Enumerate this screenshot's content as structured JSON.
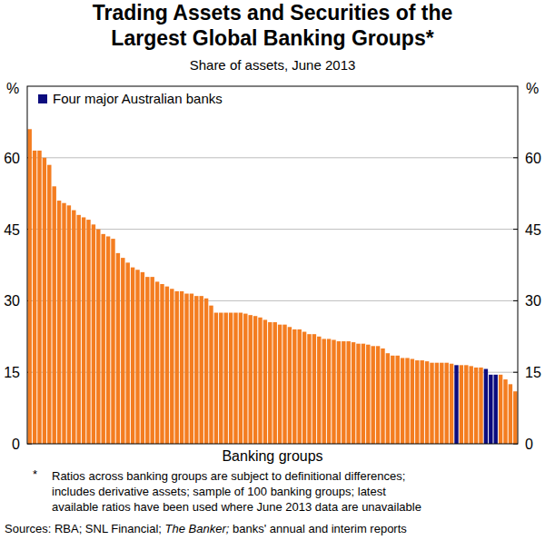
{
  "chart_data": {
    "type": "bar",
    "title": [
      "Trading Assets and Securities of the",
      "Largest Global Banking Groups*"
    ],
    "subtitle": "Share of assets, June 2013",
    "x_label": "Banking groups",
    "y_unit": "%",
    "legend": "top-left",
    "legend_items": [
      {
        "name": "Four major Australian banks",
        "color": "#0c0c7e"
      }
    ],
    "categories": [
      null,
      null,
      null,
      null,
      null,
      null,
      null,
      null,
      null,
      null,
      null,
      null,
      null,
      null,
      null,
      null,
      null,
      null,
      null,
      null,
      null,
      null,
      null,
      null,
      null,
      null,
      null,
      null,
      null,
      null,
      null,
      null,
      null,
      null,
      null,
      null,
      null,
      null,
      null,
      null,
      null,
      null,
      null,
      null,
      null,
      null,
      null,
      null,
      null,
      null,
      null,
      null,
      null,
      null,
      null,
      null,
      null,
      null,
      null,
      null,
      null,
      null,
      null,
      null,
      null,
      null,
      null,
      null,
      null,
      null,
      null,
      null,
      null,
      null,
      null,
      null,
      null,
      null,
      null,
      null,
      null,
      null,
      null,
      null,
      null,
      null,
      null,
      null,
      null,
      null,
      null,
      null,
      null,
      null,
      null,
      null,
      null,
      null,
      null,
      null
    ],
    "values": [
      66,
      61.5,
      61.5,
      60,
      58.5,
      54,
      51,
      50.5,
      50,
      49,
      48,
      47.5,
      47,
      46,
      45,
      44,
      43.5,
      43,
      40,
      39,
      38,
      37,
      36.5,
      36,
      35,
      35,
      34,
      33.5,
      33,
      32.5,
      32,
      32,
      31.5,
      31.5,
      31,
      31,
      30.5,
      29,
      27.5,
      27.5,
      27.5,
      27.5,
      27.5,
      27.5,
      27.3,
      27,
      26.8,
      26.5,
      26,
      25.5,
      25.5,
      25,
      25,
      24.5,
      24,
      24,
      23.5,
      23,
      23,
      22.5,
      22,
      22,
      21.8,
      21.5,
      21.5,
      21.5,
      21.3,
      21,
      21,
      20.8,
      20.5,
      20.5,
      20,
      19,
      18.5,
      18.5,
      18,
      18,
      17.8,
      17.5,
      17.5,
      17.3,
      17,
      17,
      17,
      17,
      16.8,
      16.5,
      16.5,
      16.5,
      16.3,
      16,
      16,
      15.7,
      14.5,
      14.5,
      14.5,
      13.5,
      12.5,
      11
    ],
    "colors": [
      "#f47d20",
      "#f47d20",
      "#f47d20",
      "#f47d20",
      "#f47d20",
      "#f47d20",
      "#f47d20",
      "#f47d20",
      "#f47d20",
      "#f47d20",
      "#f47d20",
      "#f47d20",
      "#f47d20",
      "#f47d20",
      "#f47d20",
      "#f47d20",
      "#f47d20",
      "#f47d20",
      "#f47d20",
      "#f47d20",
      "#f47d20",
      "#f47d20",
      "#f47d20",
      "#f47d20",
      "#f47d20",
      "#f47d20",
      "#f47d20",
      "#f47d20",
      "#f47d20",
      "#f47d20",
      "#f47d20",
      "#f47d20",
      "#f47d20",
      "#f47d20",
      "#f47d20",
      "#f47d20",
      "#f47d20",
      "#f47d20",
      "#f47d20",
      "#f47d20",
      "#f47d20",
      "#f47d20",
      "#f47d20",
      "#f47d20",
      "#f47d20",
      "#f47d20",
      "#f47d20",
      "#f47d20",
      "#f47d20",
      "#f47d20",
      "#f47d20",
      "#f47d20",
      "#f47d20",
      "#f47d20",
      "#f47d20",
      "#f47d20",
      "#f47d20",
      "#f47d20",
      "#f47d20",
      "#f47d20",
      "#f47d20",
      "#f47d20",
      "#f47d20",
      "#f47d20",
      "#f47d20",
      "#f47d20",
      "#f47d20",
      "#f47d20",
      "#f47d20",
      "#f47d20",
      "#f47d20",
      "#f47d20",
      "#f47d20",
      "#f47d20",
      "#f47d20",
      "#f47d20",
      "#f47d20",
      "#f47d20",
      "#f47d20",
      "#f47d20",
      "#f47d20",
      "#f47d20",
      "#f47d20",
      "#f47d20",
      "#f47d20",
      "#f47d20",
      "#f47d20",
      "#0c0c7e",
      "#f47d20",
      "#f47d20",
      "#f47d20",
      "#f47d20",
      "#f47d20",
      "#0c0c7e",
      "#0c0c7e",
      "#0c0c7e",
      "#f47d20",
      "#f47d20",
      "#f47d20",
      "#f47d20"
    ],
    "ylim": [
      0,
      75
    ],
    "yticks": [
      0,
      15,
      30,
      45,
      60
    ],
    "grid": true,
    "tick_labels": "y",
    "footnote_marker": "*",
    "footnote": [
      "Ratios across banking groups are subject to definitional differences;",
      "includes derivative assets; sample of 100 banking groups; latest",
      "available ratios have been used where June 2013 data are unavailable"
    ],
    "sources": {
      "before": "Sources: RBA; SNL Financial; ",
      "italic": "The Banker;",
      "after": " banks' annual and interim reports"
    }
  }
}
